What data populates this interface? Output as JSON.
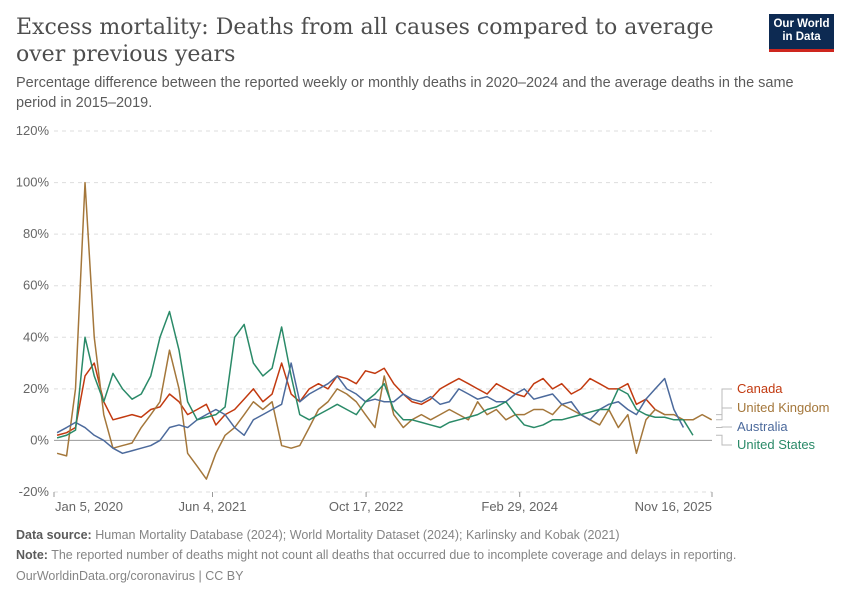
{
  "header": {
    "title": "Excess mortality: Deaths from all causes compared to average over previous years",
    "subtitle": "Percentage difference between the reported weekly or monthly deaths in 2020–2024 and the average deaths in the same period in 2015–2019.",
    "logo": "Our World in Data"
  },
  "footer": {
    "source_label": "Data source:",
    "source": "Human Mortality Database (2024); World Mortality Dataset (2024); Karlinsky and Kobak (2021)",
    "note_label": "Note:",
    "note": "The reported number of deaths might not count all deaths that occurred due to incomplete coverage and delays in reporting.",
    "url": "OurWorldinData.org/coronavirus | CC BY"
  },
  "chart_data": {
    "type": "line",
    "ylim": [
      -20,
      120
    ],
    "yticks": [
      -20,
      0,
      20,
      40,
      60,
      80,
      100,
      120
    ],
    "ytick_labels": [
      "-20%",
      "0%",
      "20%",
      "40%",
      "60%",
      "80%",
      "100%",
      "120%"
    ],
    "xlim": [
      "2020-01-05",
      "2025-11-16"
    ],
    "xticks": [
      "2020-01-05",
      "2021-06-04",
      "2022-10-17",
      "2024-02-29",
      "2025-11-16"
    ],
    "xtick_labels": [
      "Jan 5, 2020",
      "Jun 4, 2021",
      "Oct 17, 2022",
      "Feb 29, 2024",
      "Nov 16, 2025"
    ],
    "grid": "horizontal dashed",
    "legend": "right, inline labels",
    "start_month": "2020-01",
    "series": [
      {
        "name": "Canada",
        "color": "#c23a10",
        "values": [
          2,
          3,
          5,
          25,
          30,
          15,
          8,
          9,
          10,
          9,
          12,
          13,
          18,
          15,
          10,
          12,
          14,
          6,
          10,
          12,
          16,
          20,
          15,
          18,
          30,
          18,
          15,
          20,
          22,
          20,
          25,
          24,
          22,
          27,
          26,
          28,
          22,
          18,
          15,
          14,
          16,
          20,
          22,
          24,
          22,
          20,
          18,
          22,
          20,
          18,
          17,
          22,
          24,
          20,
          22,
          18,
          20,
          24,
          22,
          20,
          20,
          22,
          14,
          16,
          12,
          10
        ]
      },
      {
        "name": "United Kingdom",
        "color": "#a4773b",
        "values": [
          -5,
          -6,
          20,
          100,
          40,
          10,
          -3,
          -2,
          -1,
          5,
          10,
          15,
          35,
          20,
          -5,
          -10,
          -15,
          -5,
          2,
          5,
          10,
          15,
          12,
          15,
          -2,
          -3,
          -2,
          5,
          12,
          15,
          20,
          18,
          15,
          10,
          5,
          25,
          10,
          5,
          8,
          10,
          8,
          10,
          12,
          10,
          8,
          15,
          10,
          12,
          8,
          10,
          10,
          12,
          12,
          10,
          14,
          12,
          10,
          8,
          6,
          12,
          5,
          10,
          -5,
          8,
          12,
          10,
          10,
          8,
          8,
          10,
          8
        ]
      },
      {
        "name": "Australia",
        "color": "#4c6a9c",
        "values": [
          3,
          5,
          7,
          5,
          2,
          0,
          -3,
          -5,
          -4,
          -3,
          -2,
          0,
          5,
          6,
          5,
          8,
          10,
          12,
          10,
          5,
          2,
          8,
          10,
          12,
          14,
          30,
          15,
          18,
          20,
          22,
          25,
          20,
          18,
          15,
          16,
          15,
          15,
          18,
          16,
          15,
          17,
          14,
          15,
          20,
          18,
          16,
          17,
          15,
          15,
          18,
          20,
          16,
          17,
          18,
          14,
          15,
          10,
          8,
          12,
          14,
          15,
          12,
          10,
          16,
          20,
          24,
          12,
          5
        ]
      },
      {
        "name": "United States",
        "color": "#2a8a68",
        "values": [
          1,
          2,
          4,
          40,
          25,
          15,
          26,
          20,
          16,
          18,
          25,
          40,
          50,
          35,
          15,
          8,
          9,
          10,
          13,
          40,
          45,
          30,
          25,
          28,
          44,
          25,
          10,
          8,
          10,
          12,
          14,
          12,
          10,
          15,
          18,
          22,
          12,
          8,
          8,
          7,
          6,
          5,
          7,
          8,
          9,
          10,
          12,
          13,
          15,
          10,
          6,
          5,
          6,
          8,
          8,
          9,
          10,
          11,
          12,
          12,
          20,
          18,
          12,
          10,
          9,
          9,
          8,
          8,
          2
        ]
      }
    ]
  }
}
